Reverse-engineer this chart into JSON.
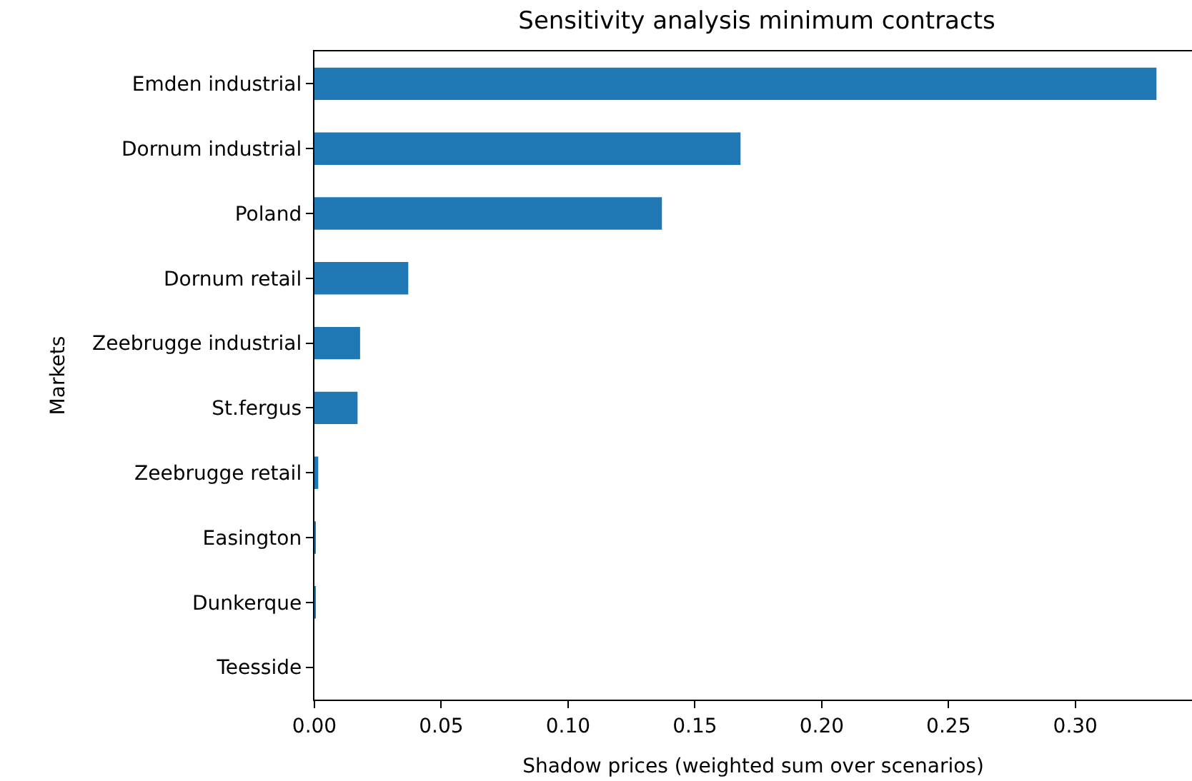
{
  "chart_data": {
    "type": "bar",
    "orientation": "horizontal",
    "title": "Sensitivity analysis minimum contracts",
    "xlabel": "Shadow prices (weighted sum over scenarios)",
    "ylabel": "Markets",
    "categories": [
      "Emden industrial",
      "Dornum industrial",
      "Poland",
      "Dornum retail",
      "Zeebrugge industrial",
      "St.fergus",
      "Zeebrugge retail",
      "Easington",
      "Dunkerque",
      "Teesside"
    ],
    "values": [
      0.332,
      0.168,
      0.137,
      0.037,
      0.018,
      0.017,
      0.0015,
      0.0003,
      0.0003,
      0
    ],
    "color": "#1f77b4",
    "xlim": [
      0,
      0.346
    ],
    "xticks": [
      {
        "value": 0,
        "label": "0.00"
      },
      {
        "value": 0.05,
        "label": "0.05"
      },
      {
        "value": 0.1,
        "label": "0.10"
      },
      {
        "value": 0.15,
        "label": "0.15"
      },
      {
        "value": 0.2,
        "label": "0.20"
      },
      {
        "value": 0.25,
        "label": "0.25"
      },
      {
        "value": 0.3,
        "label": "0.30"
      }
    ]
  }
}
